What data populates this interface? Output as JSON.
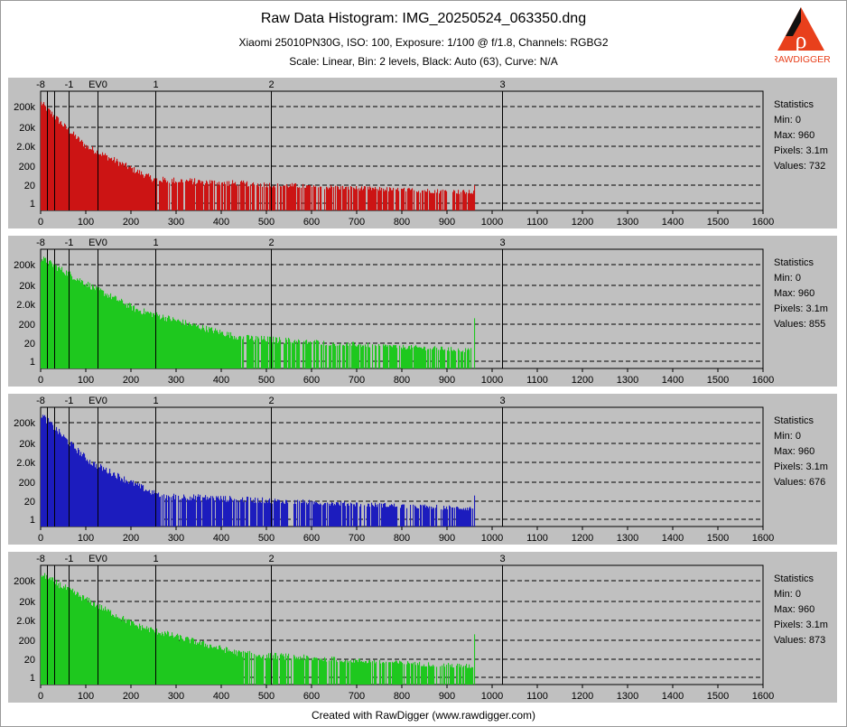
{
  "header": {
    "title": "Raw Data Histogram: IMG_20250524_063350.dng",
    "subtitle": "Xiaomi 25010PN30G, ISO: 100, Exposure: 1/100 @ f/1.8, Channels: RGBG2",
    "settings": "Scale: Linear, Bin: 2 levels, Black: Auto (63), Curve: N/A"
  },
  "footer": "Created with RawDigger (www.rawdigger.com)",
  "logo": {
    "text": "RAWDIGGER",
    "color": "#e8401c"
  },
  "chart_data": [
    {
      "type": "bar",
      "channel": "R",
      "color": "#cc1414",
      "xlim": [
        0,
        1600
      ],
      "x_ticks": [
        "0",
        "100",
        "200",
        "300",
        "400",
        "500",
        "600",
        "700",
        "800",
        "900",
        "1000",
        "1100",
        "1200",
        "1300",
        "1400",
        "1500",
        "1600"
      ],
      "y_ticks": [
        "200k",
        "20k",
        "2.0k",
        "200",
        "20",
        "1"
      ],
      "ev_labels": [
        {
          "label": "-8",
          "x": 0
        },
        {
          "label": "-1",
          "x": 63
        },
        {
          "label": "EV0",
          "x": 127
        },
        {
          "label": "1",
          "x": 255
        },
        {
          "label": "2",
          "x": 511
        },
        {
          "label": "3",
          "x": 1023
        }
      ],
      "series_profile": {
        "start_count": 300000,
        "hump_center": 100,
        "hump_count": 2000,
        "tail_knee": 250,
        "max_value": 960,
        "spike_count": 20
      },
      "stats": {
        "heading": "Statistics",
        "min": "Min: 0",
        "max": "Max: 960",
        "pixels": "Pixels: 3.1m",
        "values": "Values: 732"
      }
    },
    {
      "type": "bar",
      "channel": "G",
      "color": "#1ec81e",
      "xlim": [
        0,
        1600
      ],
      "x_ticks": [
        "0",
        "100",
        "200",
        "300",
        "400",
        "500",
        "600",
        "700",
        "800",
        "900",
        "1000",
        "1100",
        "1200",
        "1300",
        "1400",
        "1500",
        "1600"
      ],
      "y_ticks": [
        "200k",
        "20k",
        "2.0k",
        "200",
        "20",
        "1"
      ],
      "ev_labels": [
        {
          "label": "-8",
          "x": 0
        },
        {
          "label": "-1",
          "x": 63
        },
        {
          "label": "EV0",
          "x": 127
        },
        {
          "label": "1",
          "x": 255
        },
        {
          "label": "2",
          "x": 511
        },
        {
          "label": "3",
          "x": 1023
        }
      ],
      "series_profile": {
        "start_count": 400000,
        "hump_center": 210,
        "hump_count": 1100,
        "tail_knee": 440,
        "max_value": 960,
        "spike_count": 400
      },
      "stats": {
        "heading": "Statistics",
        "min": "Min: 0",
        "max": "Max: 960",
        "pixels": "Pixels: 3.1m",
        "values": "Values: 855"
      }
    },
    {
      "type": "bar",
      "channel": "B",
      "color": "#1c1cbe",
      "xlim": [
        0,
        1600
      ],
      "x_ticks": [
        "0",
        "100",
        "200",
        "300",
        "400",
        "500",
        "600",
        "700",
        "800",
        "900",
        "1000",
        "1100",
        "1200",
        "1300",
        "1400",
        "1500",
        "1600"
      ],
      "y_ticks": [
        "200k",
        "20k",
        "2.0k",
        "200",
        "20",
        "1"
      ],
      "ev_labels": [
        {
          "label": "-8",
          "x": 0
        },
        {
          "label": "-1",
          "x": 63
        },
        {
          "label": "EV0",
          "x": 127
        },
        {
          "label": "1",
          "x": 255
        },
        {
          "label": "2",
          "x": 511
        },
        {
          "label": "3",
          "x": 1023
        }
      ],
      "series_profile": {
        "start_count": 500000,
        "hump_center": 110,
        "hump_count": 2000,
        "tail_knee": 260,
        "max_value": 960,
        "spike_count": 40
      },
      "stats": {
        "heading": "Statistics",
        "min": "Min: 0",
        "max": "Max: 960",
        "pixels": "Pixels: 3.1m",
        "values": "Values: 676"
      }
    },
    {
      "type": "bar",
      "channel": "G2",
      "color": "#1ec81e",
      "xlim": [
        0,
        1600
      ],
      "x_ticks": [
        "0",
        "100",
        "200",
        "300",
        "400",
        "500",
        "600",
        "700",
        "800",
        "900",
        "1000",
        "1100",
        "1200",
        "1300",
        "1400",
        "1500",
        "1600"
      ],
      "y_ticks": [
        "200k",
        "20k",
        "2.0k",
        "200",
        "20",
        "1"
      ],
      "ev_labels": [
        {
          "label": "-8",
          "x": 0
        },
        {
          "label": "-1",
          "x": 63
        },
        {
          "label": "EV0",
          "x": 127
        },
        {
          "label": "1",
          "x": 255
        },
        {
          "label": "2",
          "x": 511
        },
        {
          "label": "3",
          "x": 1023
        }
      ],
      "series_profile": {
        "start_count": 400000,
        "hump_center": 210,
        "hump_count": 1100,
        "tail_knee": 440,
        "max_value": 960,
        "spike_count": 400
      },
      "stats": {
        "heading": "Statistics",
        "min": "Min: 0",
        "max": "Max: 960",
        "pixels": "Pixels: 3.1m",
        "values": "Values: 873"
      }
    }
  ]
}
